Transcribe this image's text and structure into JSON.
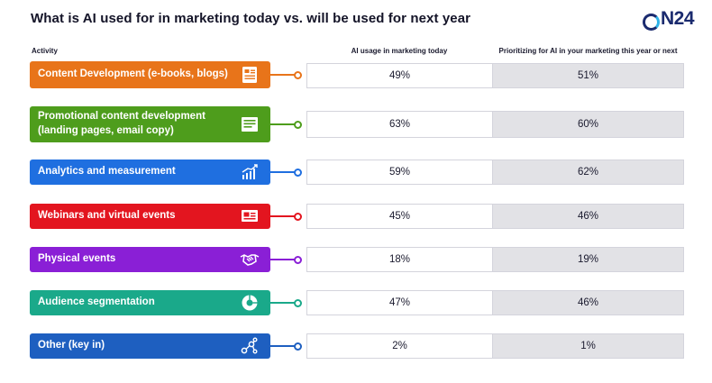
{
  "header": {
    "title": "What is AI used for in marketing today vs. will be used for next year",
    "logo_text": "N24"
  },
  "columns": {
    "activity": "Activity",
    "today": "AI usage in marketing today",
    "next": "Prioritizing for AI in your marketing this year or next"
  },
  "chart_data": {
    "type": "table",
    "title": "What is AI used for in marketing today vs. will be used for next year",
    "columns": [
      "Activity",
      "AI usage in marketing today",
      "Prioritizing for AI in your marketing this year or next"
    ],
    "rows": [
      {
        "activity": "Content Development (e-books, blogs)",
        "today": "49%",
        "next": "51%",
        "color": "#e8741a",
        "icon": "document-icon"
      },
      {
        "activity": "Promotional content development (landing pages, email copy)",
        "today": "63%",
        "next": "60%",
        "color": "#4e9d1c",
        "icon": "newsletter-icon"
      },
      {
        "activity": "Analytics and measurement",
        "today": "59%",
        "next": "62%",
        "color": "#1f6fe0",
        "icon": "bar-chart-icon"
      },
      {
        "activity": "Webinars and virtual events",
        "today": "45%",
        "next": "46%",
        "color": "#e3151f",
        "icon": "presentation-icon"
      },
      {
        "activity": "Physical events",
        "today": "18%",
        "next": "19%",
        "color": "#8a1fd6",
        "icon": "handshake-icon"
      },
      {
        "activity": "Audience segmentation",
        "today": "47%",
        "next": "46%",
        "color": "#1aa98a",
        "icon": "pie-chart-icon"
      },
      {
        "activity": "Other (key in)",
        "today": "2%",
        "next": "1%",
        "color": "#1e5fc0",
        "icon": "network-icon"
      }
    ]
  }
}
